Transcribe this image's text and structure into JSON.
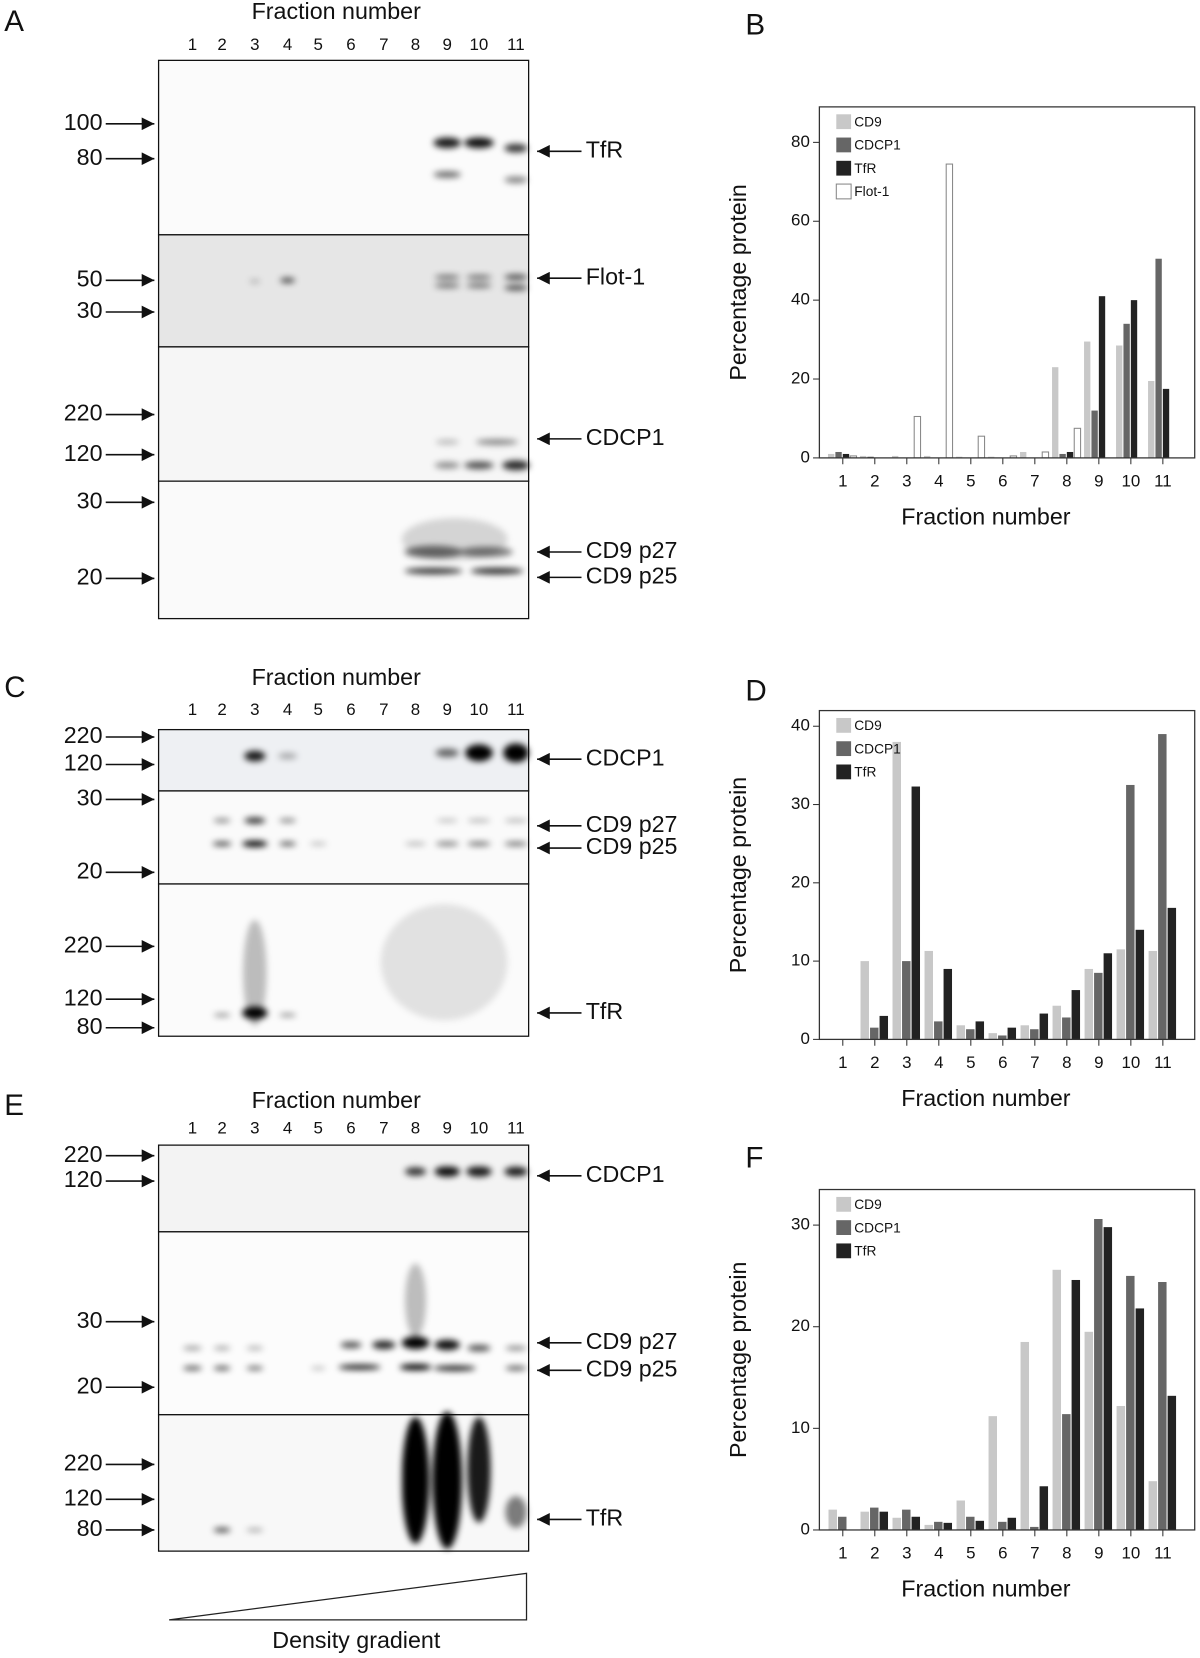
{
  "chart_data": [
    {
      "type": "bar",
      "panel": "B",
      "xlabel": "Fraction number",
      "ylabel": "Percentage protein",
      "categories": [
        "1",
        "2",
        "3",
        "4",
        "5",
        "6",
        "7",
        "8",
        "9",
        "10",
        "11"
      ],
      "series": [
        {
          "name": "CD9",
          "color": "#c8c8c8",
          "values": [
            1,
            0.5,
            0.5,
            0.5,
            0.3,
            0.3,
            1.5,
            23,
            29.5,
            28.5,
            19.5
          ]
        },
        {
          "name": "CDCP1",
          "color": "#666666",
          "values": [
            1.5,
            0.3,
            0,
            0,
            0,
            0,
            0,
            1,
            12,
            34,
            50.5
          ]
        },
        {
          "name": "TfR",
          "color": "#222222",
          "values": [
            1,
            0,
            0,
            0,
            0,
            0,
            0,
            1.5,
            41,
            40,
            17.5
          ]
        },
        {
          "name": "Flot-1",
          "color": "#ffffff",
          "values": [
            0.5,
            0,
            10.5,
            74.5,
            5.5,
            0.5,
            1.5,
            7.5,
            0,
            0,
            0
          ]
        }
      ],
      "ylim": [
        0,
        89
      ],
      "yticks": [
        0,
        20,
        40,
        60,
        80
      ],
      "legend": "upper left"
    },
    {
      "type": "bar",
      "panel": "D",
      "xlabel": "Fraction number",
      "ylabel": "Percentage protein",
      "categories": [
        "1",
        "2",
        "3",
        "4",
        "5",
        "6",
        "7",
        "8",
        "9",
        "10",
        "11"
      ],
      "series": [
        {
          "name": "CD9",
          "color": "#c8c8c8",
          "values": [
            0,
            10,
            38,
            11.3,
            1.8,
            0.8,
            1.8,
            4.3,
            9,
            11.5,
            11.3
          ]
        },
        {
          "name": "CDCP1",
          "color": "#666666",
          "values": [
            0,
            1.5,
            10,
            2.3,
            1.3,
            0.5,
            1.3,
            2.8,
            8.5,
            32.5,
            39
          ]
        },
        {
          "name": "TfR",
          "color": "#222222",
          "values": [
            0,
            3,
            32.3,
            9,
            2.3,
            1.5,
            3.3,
            6.3,
            11,
            14,
            16.8
          ]
        }
      ],
      "ylim": [
        0,
        42
      ],
      "yticks": [
        0,
        10,
        20,
        30,
        40
      ],
      "legend": "upper left"
    },
    {
      "type": "bar",
      "panel": "F",
      "xlabel": "Fraction number",
      "ylabel": "Percentage protein",
      "categories": [
        "1",
        "2",
        "3",
        "4",
        "5",
        "6",
        "7",
        "8",
        "9",
        "10",
        "11"
      ],
      "series": [
        {
          "name": "CD9",
          "color": "#c8c8c8",
          "values": [
            2,
            1.8,
            1.2,
            0.5,
            2.9,
            11.2,
            18.5,
            25.6,
            19.5,
            12.2,
            4.8
          ]
        },
        {
          "name": "CDCP1",
          "color": "#666666",
          "values": [
            1.3,
            2.2,
            2,
            0.8,
            1.3,
            0.8,
            0.3,
            11.4,
            30.6,
            25,
            24.4
          ]
        },
        {
          "name": "TfR",
          "color": "#222222",
          "values": [
            0,
            1.8,
            1.3,
            0.7,
            0.9,
            1.2,
            4.3,
            24.6,
            29.8,
            21.8,
            13.2
          ]
        }
      ],
      "ylim": [
        0,
        33.5
      ],
      "yticks": [
        0,
        10,
        20,
        30
      ],
      "legend": "upper left"
    }
  ],
  "blots": [
    {
      "panel": "A",
      "title": "Fraction number",
      "lanes": [
        1,
        2,
        3,
        4,
        5,
        6,
        7,
        8,
        9,
        10,
        11
      ],
      "markers": [
        100,
        80,
        50,
        30,
        220,
        120,
        30,
        20
      ],
      "proteins": [
        "TfR",
        "Flot-1",
        "CDCP1",
        "CD9 p27",
        "CD9 p25"
      ]
    },
    {
      "panel": "C",
      "title": "Fraction number",
      "lanes": [
        1,
        2,
        3,
        4,
        5,
        6,
        7,
        8,
        9,
        10,
        11
      ],
      "markers": [
        220,
        120,
        30,
        20,
        220,
        120,
        80
      ],
      "proteins": [
        "CDCP1",
        "CD9 p27",
        "CD9 p25",
        "TfR"
      ]
    },
    {
      "panel": "E",
      "title": "Fraction number",
      "lanes": [
        1,
        2,
        3,
        4,
        5,
        6,
        7,
        8,
        9,
        10,
        11
      ],
      "markers": [
        220,
        120,
        30,
        20,
        220,
        120,
        80
      ],
      "proteins": [
        "CDCP1",
        "CD9 p27",
        "CD9 p25",
        "TfR"
      ]
    }
  ],
  "gradient_label": "Density gradient"
}
